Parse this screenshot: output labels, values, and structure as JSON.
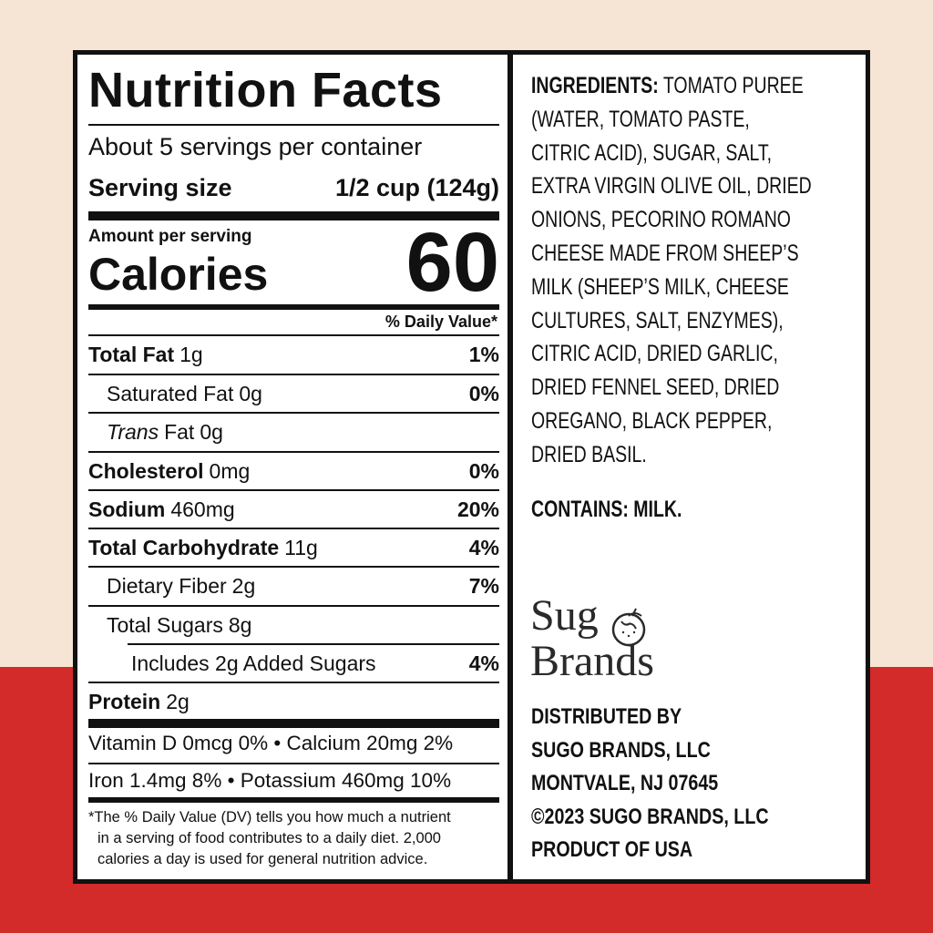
{
  "nutrition": {
    "title": "Nutrition Facts",
    "servings": "About 5 servings per container",
    "serving_size_label": "Serving size",
    "serving_size": "1/2 cup (124g)",
    "amount_per_serving": "Amount per serving",
    "calories_label": "Calories",
    "calories": 60,
    "dv_header": "% Daily Value*",
    "rows": [
      {
        "name": "Total Fat",
        "amount": "1g",
        "dv": "1%"
      },
      {
        "name": "Saturated Fat",
        "amount": "0g",
        "dv": "0%"
      },
      {
        "name_italic": "Trans",
        "name": "Fat",
        "amount": "0g"
      },
      {
        "name": "Cholesterol",
        "amount": "0mg",
        "dv": "0%"
      },
      {
        "name": "Sodium",
        "amount": "460mg",
        "dv": "20%"
      },
      {
        "name": "Total Carbohydrate",
        "amount": "11g",
        "dv": "4%"
      },
      {
        "name": "Dietary Fiber",
        "amount": "2g",
        "dv": "7%"
      },
      {
        "name": "Total Sugars",
        "amount": "8g"
      },
      {
        "name": "Includes 2g Added Sugars",
        "dv": "4%"
      },
      {
        "name": "Protein",
        "amount": "2g"
      }
    ],
    "vitamin_lines": [
      "Vitamin D 0mcg 0% • Calcium 20mg 2%",
      "Iron 1.4mg 8% • Potassium 460mg 10%"
    ],
    "footnote": [
      "*The % Daily Value (DV) tells you how much a nutrient",
      "in a serving of food contributes to a daily diet. 2,000",
      "calories a day is used for general nutrition advice."
    ]
  },
  "ingredients": {
    "label": "INGREDIENTS:",
    "lines": [
      "TOMATO PUREE",
      "(WATER, TOMATO PASTE,",
      "CITRIC ACID), SUGAR, SALT,",
      "EXTRA VIRGIN OLIVE OIL, DRIED",
      "ONIONS, PECORINO ROMANO",
      "CHEESE MADE FROM SHEEP’S",
      "MILK (SHEEP’S MILK, CHEESE",
      "CULTURES, SALT, ENZYMES),",
      "CITRIC ACID, DRIED GARLIC,",
      "DRIED FENNEL SEED, DRIED",
      "OREGANO, BLACK PEPPER,",
      "DRIED BASIL."
    ]
  },
  "contains": {
    "label": "CONTAINS:",
    "text": "MILK."
  },
  "brand": {
    "line1": "Sug",
    "line2": "Brands"
  },
  "distributor": [
    "DISTRIBUTED BY",
    "SUGO BRANDS, LLC",
    "MONTVALE, NJ 07645",
    "©2023 SUGO BRANDS, LLC",
    "PRODUCT OF USA"
  ]
}
